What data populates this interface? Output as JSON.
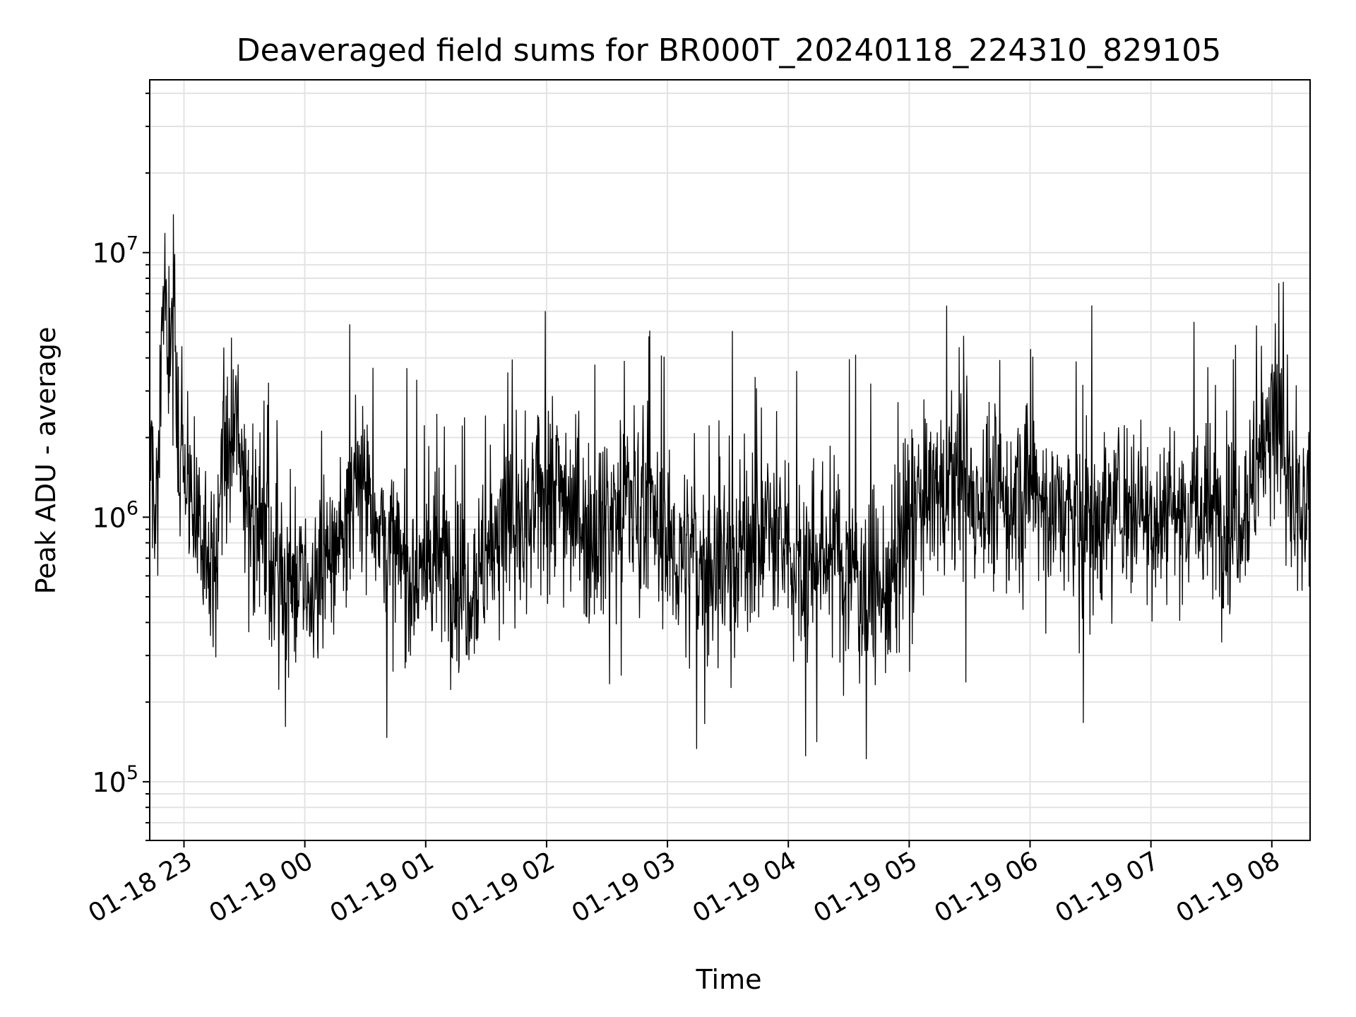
{
  "chart_data": {
    "type": "line",
    "title": "Deaveraged field sums for BR000T_20240118_224310_829105",
    "xlabel": "Time",
    "ylabel": "Peak ADU - average",
    "yscale": "log",
    "grid": true,
    "xlim": [
      "2024-01-18 22:43",
      "2024-01-19 08:19"
    ],
    "ylim": [
      60000,
      45000000
    ],
    "xticks": [
      "01-18 23",
      "01-19 00",
      "01-19 01",
      "01-19 02",
      "01-19 03",
      "01-19 04",
      "01-19 05",
      "01-19 06",
      "01-19 07",
      "01-19 08"
    ],
    "yticks": [
      {
        "base": "10",
        "exp": "5",
        "value": 100000
      },
      {
        "base": "10",
        "exp": "6",
        "value": 1000000
      },
      {
        "base": "10",
        "exp": "7",
        "value": 10000000
      }
    ],
    "line_color": "#000000",
    "series": [
      {
        "x": [
          "2024-01-18 22:43",
          "2024-01-18 22:45",
          "2024-01-18 22:47",
          "2024-01-18 22:50",
          "2024-01-18 22:52",
          "2024-01-18 22:55",
          "2024-01-18 22:57",
          "2024-01-18 23:00",
          "2024-01-18 23:05",
          "2024-01-18 23:10",
          "2024-01-18 23:15",
          "2024-01-18 23:20",
          "2024-01-18 23:25",
          "2024-01-18 23:30",
          "2024-01-18 23:40",
          "2024-01-18 23:50",
          "2024-01-19 00:00",
          "2024-01-19 00:10",
          "2024-01-19 00:20",
          "2024-01-19 00:30",
          "2024-01-19 00:40",
          "2024-01-19 00:50",
          "2024-01-19 01:00",
          "2024-01-19 01:10",
          "2024-01-19 01:20",
          "2024-01-19 01:30",
          "2024-01-19 01:40",
          "2024-01-19 01:50",
          "2024-01-19 02:00",
          "2024-01-19 02:10",
          "2024-01-19 02:20",
          "2024-01-19 02:30",
          "2024-01-19 02:40",
          "2024-01-19 02:50",
          "2024-01-19 03:00",
          "2024-01-19 03:10",
          "2024-01-19 03:20",
          "2024-01-19 03:30",
          "2024-01-19 03:40",
          "2024-01-19 03:50",
          "2024-01-19 04:00",
          "2024-01-19 04:10",
          "2024-01-19 04:20",
          "2024-01-19 04:30",
          "2024-01-19 04:40",
          "2024-01-19 04:50",
          "2024-01-19 05:00",
          "2024-01-19 05:10",
          "2024-01-19 05:20",
          "2024-01-19 05:30",
          "2024-01-19 05:40",
          "2024-01-19 05:50",
          "2024-01-19 06:00",
          "2024-01-19 06:10",
          "2024-01-19 06:20",
          "2024-01-19 06:30",
          "2024-01-19 06:40",
          "2024-01-19 06:50",
          "2024-01-19 07:00",
          "2024-01-19 07:10",
          "2024-01-19 07:20",
          "2024-01-19 07:30",
          "2024-01-19 07:40",
          "2024-01-19 07:50",
          "2024-01-19 08:00",
          "2024-01-19 08:05",
          "2024-01-19 08:10",
          "2024-01-19 08:15",
          "2024-01-19 08:19"
        ],
        "values": [
          2000000,
          1000000,
          1200000,
          10000000,
          3000000,
          9000000,
          1500000,
          1800000,
          1000000,
          900000,
          600000,
          1500000,
          2000000,
          1500000,
          800000,
          600000,
          500000,
          600000,
          1000000,
          1400000,
          800000,
          600000,
          650000,
          700000,
          550000,
          700000,
          1000000,
          800000,
          1500000,
          1200000,
          900000,
          1000000,
          1200000,
          1100000,
          750000,
          700000,
          650000,
          700000,
          800000,
          900000,
          700000,
          650000,
          750000,
          650000,
          550000,
          500000,
          1000000,
          1200000,
          1300000,
          1200000,
          1200000,
          1100000,
          1300000,
          1100000,
          1000000,
          900000,
          1100000,
          1200000,
          1000000,
          1100000,
          1100000,
          1000000,
          1000000,
          1300000,
          2500000,
          2000000,
          1100000,
          900000,
          1000000
        ]
      }
    ]
  }
}
